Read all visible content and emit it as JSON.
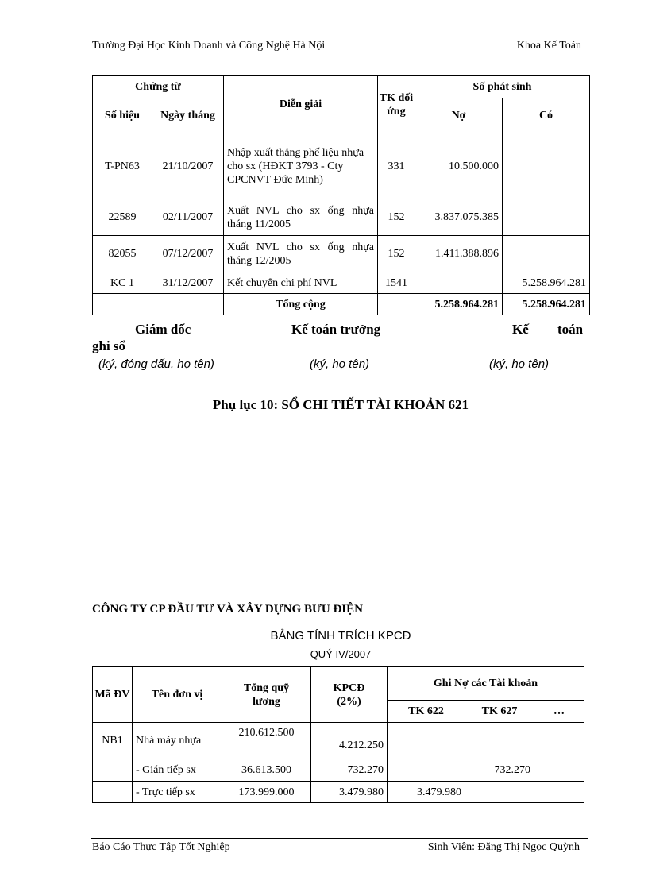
{
  "header": {
    "left": "Trường Đại Học Kinh Doanh và Công Nghệ Hà Nội",
    "right": "Khoa Kế Toán"
  },
  "table1": {
    "headers": {
      "chung_tu": "Chứng từ",
      "so_hieu": "Số hiệu",
      "ngay_thang": "Ngày tháng",
      "dien_giai": "Diễn giải",
      "tk_doi_ung": "TK đối ứng",
      "so_phat_sinh": "Số phát sinh",
      "no": "Nợ",
      "co": "Có"
    },
    "rows": [
      {
        "so_hieu": "T-PN63",
        "ngay": "21/10/2007",
        "dien_giai": "Nhập xuất thẳng phế liệu nhựa cho sx (HĐKT 3793 - Cty CPCNVT Đức Minh)",
        "tk": "331",
        "no": "10.500.000",
        "co": ""
      },
      {
        "so_hieu": "22589",
        "ngay": "02/11/2007",
        "dien_giai": "Xuất NVL cho sx ống nhựa tháng 11/2005",
        "tk": "152",
        "no": "3.837.075.385",
        "co": ""
      },
      {
        "so_hieu": "82055",
        "ngay": "07/12/2007",
        "dien_giai": "Xuất NVL cho sx ống nhựa tháng 12/2005",
        "tk": "152",
        "no": "1.411.388.896",
        "co": ""
      },
      {
        "so_hieu": "KC 1",
        "ngay": "31/12/2007",
        "dien_giai": "Kết chuyển chi phí NVL",
        "tk": "1541",
        "no": "",
        "co": "5.258.964.281"
      }
    ],
    "total": {
      "label": "Tổng cộng",
      "no": "5.258.964.281",
      "co": "5.258.964.281"
    }
  },
  "signatures": {
    "giam_doc": "Giám đốc",
    "ke_toan_truong": "Kế toán trưởng",
    "ke_toan_ghi_so_1": "Kế",
    "ke_toan_ghi_so_2": "toán",
    "ke_toan_ghi_so_3": "ghi sổ",
    "note1": "(ký, đóng dấu, họ tên)",
    "note2": "(ký, họ tên)",
    "note3": "(ký, họ tên)"
  },
  "appendix_title": "Phụ lục 10: SỔ CHI TIẾT TÀI KHOẢN 621",
  "company": "CÔNG TY CP ĐẦU TƯ VÀ XÂY DỰNG BƯU ĐIỆN",
  "table2_title": "BẢNG TÍNH TRÍCH KPCĐ",
  "table2_period": "QUÝ IV/2007",
  "table2": {
    "headers": {
      "ma_dv": "Mã ĐV",
      "ten_don_vi": "Tên đơn vị",
      "tong_quy_luong": "Tổng quỹ lương",
      "kpcd": "KPCĐ (2%)",
      "ghi_no": "Ghi Nợ các Tài khoản",
      "tk622": "TK 622",
      "tk627": "TK 627",
      "more": "…"
    },
    "rows": [
      {
        "ma": "NB1",
        "ten": "Nhà máy nhựa",
        "luong": "210.612.500",
        "kpcd": "4.212.250",
        "tk622": "",
        "tk627": "",
        "more": ""
      },
      {
        "ma": "",
        "ten": "- Gián tiếp sx",
        "luong": "36.613.500",
        "kpcd": "732.270",
        "tk622": "",
        "tk627": "732.270",
        "more": ""
      },
      {
        "ma": "",
        "ten": "- Trực tiếp sx",
        "luong": "173.999.000",
        "kpcd": "3.479.980",
        "tk622": "3.479.980",
        "tk627": "",
        "more": ""
      }
    ]
  },
  "footer": {
    "left": "Báo Cáo Thực Tập Tốt Nghiệp",
    "right": "Sinh Viên: Đặng Thị Ngọc Quỳnh"
  }
}
